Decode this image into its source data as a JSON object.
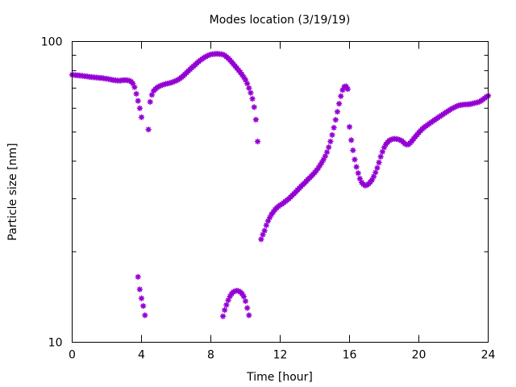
{
  "chart_data": {
    "type": "scatter",
    "title": "Modes location (3/19/19)",
    "xlabel": "Time [hour]",
    "ylabel": "Particle size [nm]",
    "xlim": [
      0,
      24
    ],
    "ylim": [
      10,
      100
    ],
    "yscale": "log",
    "grid": false,
    "x_ticks": [
      0,
      4,
      8,
      12,
      16,
      20,
      24
    ],
    "x_tick_labels": [
      "0",
      "4",
      "8",
      "12",
      "16",
      "20",
      "24"
    ],
    "y_tick_labels": [
      {
        "value": 10,
        "label": "10"
      },
      {
        "value": 100,
        "label": "100"
      }
    ],
    "marker_color": "#9400d3",
    "series": [
      {
        "points": [
          [
            0.0,
            77.5
          ],
          [
            0.1,
            77.4
          ],
          [
            0.2,
            77.3
          ],
          [
            0.3,
            77.2
          ],
          [
            0.4,
            77.1
          ],
          [
            0.5,
            77.0
          ],
          [
            0.6,
            76.9
          ],
          [
            0.7,
            76.7
          ],
          [
            0.8,
            76.6
          ],
          [
            0.9,
            76.5
          ],
          [
            1.0,
            76.3
          ],
          [
            1.1,
            76.2
          ],
          [
            1.2,
            76.1
          ],
          [
            1.3,
            76.0
          ],
          [
            1.4,
            75.9
          ],
          [
            1.5,
            75.8
          ],
          [
            1.6,
            75.7
          ],
          [
            1.7,
            75.6
          ],
          [
            1.8,
            75.5
          ],
          [
            1.9,
            75.3
          ],
          [
            2.0,
            75.2
          ],
          [
            2.1,
            75.0
          ],
          [
            2.2,
            74.8
          ],
          [
            2.3,
            74.6
          ],
          [
            2.4,
            74.4
          ],
          [
            2.5,
            74.3
          ],
          [
            2.6,
            74.2
          ],
          [
            2.7,
            74.1
          ],
          [
            2.8,
            74.2
          ],
          [
            2.9,
            74.3
          ],
          [
            3.0,
            74.4
          ],
          [
            3.1,
            74.4
          ],
          [
            3.2,
            74.3
          ],
          [
            3.3,
            74.1
          ],
          [
            3.4,
            73.6
          ],
          [
            3.5,
            72.5
          ],
          [
            3.6,
            70.5
          ],
          [
            3.7,
            67.0
          ],
          [
            3.8,
            63.5
          ],
          [
            3.9,
            60.0
          ],
          [
            4.0,
            56.0
          ],
          [
            4.4,
            51.0
          ],
          [
            4.5,
            63.0
          ],
          [
            4.6,
            66.5
          ],
          [
            4.7,
            68.5
          ],
          [
            4.8,
            69.5
          ],
          [
            4.9,
            70.3
          ],
          [
            5.0,
            70.9
          ],
          [
            5.1,
            71.3
          ],
          [
            5.2,
            71.7
          ],
          [
            5.3,
            72.0
          ],
          [
            5.4,
            72.3
          ],
          [
            5.5,
            72.5
          ],
          [
            5.6,
            72.7
          ],
          [
            5.7,
            73.0
          ],
          [
            5.8,
            73.3
          ],
          [
            5.9,
            73.7
          ],
          [
            6.0,
            74.1
          ],
          [
            6.1,
            74.6
          ],
          [
            6.2,
            75.2
          ],
          [
            6.3,
            76.0
          ],
          [
            6.4,
            76.8
          ],
          [
            6.5,
            77.8
          ],
          [
            6.6,
            78.8
          ],
          [
            6.7,
            79.8
          ],
          [
            6.8,
            80.8
          ],
          [
            6.9,
            81.8
          ],
          [
            7.0,
            82.8
          ],
          [
            7.1,
            83.8
          ],
          [
            7.2,
            84.8
          ],
          [
            7.3,
            85.8
          ],
          [
            7.4,
            86.7
          ],
          [
            7.5,
            87.5
          ],
          [
            7.6,
            88.3
          ],
          [
            7.7,
            89.0
          ],
          [
            7.8,
            89.6
          ],
          [
            7.9,
            90.2
          ],
          [
            8.0,
            90.6
          ],
          [
            8.1,
            90.8
          ],
          [
            8.2,
            90.9
          ],
          [
            8.3,
            91.0
          ],
          [
            8.4,
            91.0
          ],
          [
            8.5,
            90.9
          ],
          [
            8.6,
            90.8
          ],
          [
            8.7,
            90.5
          ],
          [
            8.8,
            89.9
          ],
          [
            8.9,
            89.0
          ],
          [
            9.0,
            88.0
          ],
          [
            9.1,
            86.8
          ],
          [
            9.2,
            85.5
          ],
          [
            9.3,
            84.2
          ],
          [
            9.4,
            82.9
          ],
          [
            9.5,
            81.6
          ],
          [
            9.6,
            80.3
          ],
          [
            9.7,
            79.0
          ],
          [
            9.8,
            77.6
          ],
          [
            9.9,
            76.1
          ],
          [
            10.0,
            74.5
          ],
          [
            10.1,
            72.5
          ],
          [
            10.2,
            70.0
          ],
          [
            10.3,
            67.5
          ],
          [
            10.4,
            64.5
          ],
          [
            10.5,
            60.5
          ],
          [
            10.6,
            55.0
          ],
          [
            10.7,
            46.5
          ],
          [
            3.8,
            16.5
          ],
          [
            3.9,
            15.0
          ],
          [
            4.0,
            14.0
          ],
          [
            4.1,
            13.2
          ],
          [
            4.2,
            12.3
          ],
          [
            8.7,
            12.2
          ],
          [
            8.8,
            12.8
          ],
          [
            8.9,
            13.3
          ],
          [
            9.0,
            13.8
          ],
          [
            9.1,
            14.2
          ],
          [
            9.2,
            14.5
          ],
          [
            9.3,
            14.7
          ],
          [
            9.4,
            14.8
          ],
          [
            9.5,
            14.85
          ],
          [
            9.6,
            14.8
          ],
          [
            9.7,
            14.7
          ],
          [
            9.8,
            14.5
          ],
          [
            9.9,
            14.2
          ],
          [
            10.0,
            13.7
          ],
          [
            10.1,
            13.0
          ],
          [
            10.2,
            12.3
          ],
          [
            10.9,
            22.0
          ],
          [
            11.0,
            22.8
          ],
          [
            11.1,
            23.5
          ],
          [
            11.2,
            24.5
          ],
          [
            11.3,
            25.3
          ],
          [
            11.4,
            26.0
          ],
          [
            11.5,
            26.6
          ],
          [
            11.6,
            27.1
          ],
          [
            11.7,
            27.6
          ],
          [
            11.8,
            28.0
          ],
          [
            11.9,
            28.3
          ],
          [
            12.0,
            28.6
          ],
          [
            12.1,
            28.8
          ],
          [
            12.2,
            29.1
          ],
          [
            12.3,
            29.4
          ],
          [
            12.4,
            29.7
          ],
          [
            12.5,
            30.0
          ],
          [
            12.6,
            30.4
          ],
          [
            12.7,
            30.8
          ],
          [
            12.8,
            31.2
          ],
          [
            12.9,
            31.6
          ],
          [
            13.0,
            32.1
          ],
          [
            13.1,
            32.5
          ],
          [
            13.2,
            33.0
          ],
          [
            13.3,
            33.4
          ],
          [
            13.4,
            33.8
          ],
          [
            13.5,
            34.3
          ],
          [
            13.6,
            34.8
          ],
          [
            13.7,
            35.2
          ],
          [
            13.8,
            35.7
          ],
          [
            13.9,
            36.2
          ],
          [
            14.0,
            36.7
          ],
          [
            14.1,
            37.3
          ],
          [
            14.2,
            38.0
          ],
          [
            14.3,
            38.8
          ],
          [
            14.4,
            39.6
          ],
          [
            14.5,
            40.5
          ],
          [
            14.6,
            41.6
          ],
          [
            14.7,
            42.9
          ],
          [
            14.8,
            44.5
          ],
          [
            14.9,
            46.5
          ],
          [
            15.0,
            48.9
          ],
          [
            15.1,
            51.7
          ],
          [
            15.2,
            54.9
          ],
          [
            15.3,
            58.4
          ],
          [
            15.4,
            62.1
          ],
          [
            15.5,
            65.8
          ],
          [
            15.6,
            69.0
          ],
          [
            15.7,
            70.8
          ],
          [
            15.8,
            71.0
          ],
          [
            15.9,
            69.5
          ],
          [
            16.0,
            52.0
          ],
          [
            16.1,
            47.0
          ],
          [
            16.2,
            43.5
          ],
          [
            16.3,
            40.5
          ],
          [
            16.4,
            38.3
          ],
          [
            16.5,
            36.5
          ],
          [
            16.6,
            35.0
          ],
          [
            16.7,
            34.0
          ],
          [
            16.8,
            33.5
          ],
          [
            16.9,
            33.2
          ],
          [
            17.0,
            33.3
          ],
          [
            17.1,
            33.6
          ],
          [
            17.2,
            34.1
          ],
          [
            17.3,
            34.7
          ],
          [
            17.4,
            35.6
          ],
          [
            17.5,
            36.7
          ],
          [
            17.6,
            38.0
          ],
          [
            17.7,
            39.6
          ],
          [
            17.8,
            41.4
          ],
          [
            17.9,
            43.0
          ],
          [
            18.0,
            44.4
          ],
          [
            18.1,
            45.5
          ],
          [
            18.2,
            46.3
          ],
          [
            18.3,
            46.9
          ],
          [
            18.4,
            47.2
          ],
          [
            18.5,
            47.4
          ],
          [
            18.6,
            47.5
          ],
          [
            18.7,
            47.4
          ],
          [
            18.8,
            47.3
          ],
          [
            18.9,
            47.1
          ],
          [
            19.0,
            46.8
          ],
          [
            19.1,
            46.3
          ],
          [
            19.2,
            45.7
          ],
          [
            19.3,
            45.4
          ],
          [
            19.4,
            45.5
          ],
          [
            19.5,
            46.0
          ],
          [
            19.6,
            46.7
          ],
          [
            19.7,
            47.5
          ],
          [
            19.8,
            48.3
          ],
          [
            19.9,
            49.0
          ],
          [
            20.0,
            49.8
          ],
          [
            20.1,
            50.5
          ],
          [
            20.2,
            51.2
          ],
          [
            20.3,
            51.8
          ],
          [
            20.4,
            52.3
          ],
          [
            20.5,
            52.8
          ],
          [
            20.6,
            53.3
          ],
          [
            20.7,
            53.8
          ],
          [
            20.8,
            54.3
          ],
          [
            20.9,
            54.8
          ],
          [
            21.0,
            55.3
          ],
          [
            21.1,
            55.8
          ],
          [
            21.2,
            56.3
          ],
          [
            21.3,
            56.8
          ],
          [
            21.4,
            57.3
          ],
          [
            21.5,
            57.8
          ],
          [
            21.6,
            58.3
          ],
          [
            21.7,
            58.8
          ],
          [
            21.8,
            59.3
          ],
          [
            21.9,
            59.8
          ],
          [
            22.0,
            60.2
          ],
          [
            22.1,
            60.6
          ],
          [
            22.2,
            61.0
          ],
          [
            22.3,
            61.3
          ],
          [
            22.4,
            61.5
          ],
          [
            22.5,
            61.6
          ],
          [
            22.6,
            61.7
          ],
          [
            22.7,
            61.8
          ],
          [
            22.8,
            61.8
          ],
          [
            22.9,
            61.9
          ],
          [
            23.0,
            62.0
          ],
          [
            23.1,
            62.2
          ],
          [
            23.2,
            62.4
          ],
          [
            23.3,
            62.6
          ],
          [
            23.4,
            62.8
          ],
          [
            23.5,
            63.1
          ],
          [
            23.6,
            63.6
          ],
          [
            23.7,
            64.2
          ],
          [
            23.8,
            64.8
          ],
          [
            23.9,
            65.5
          ],
          [
            24.0,
            66.0
          ]
        ]
      }
    ]
  }
}
